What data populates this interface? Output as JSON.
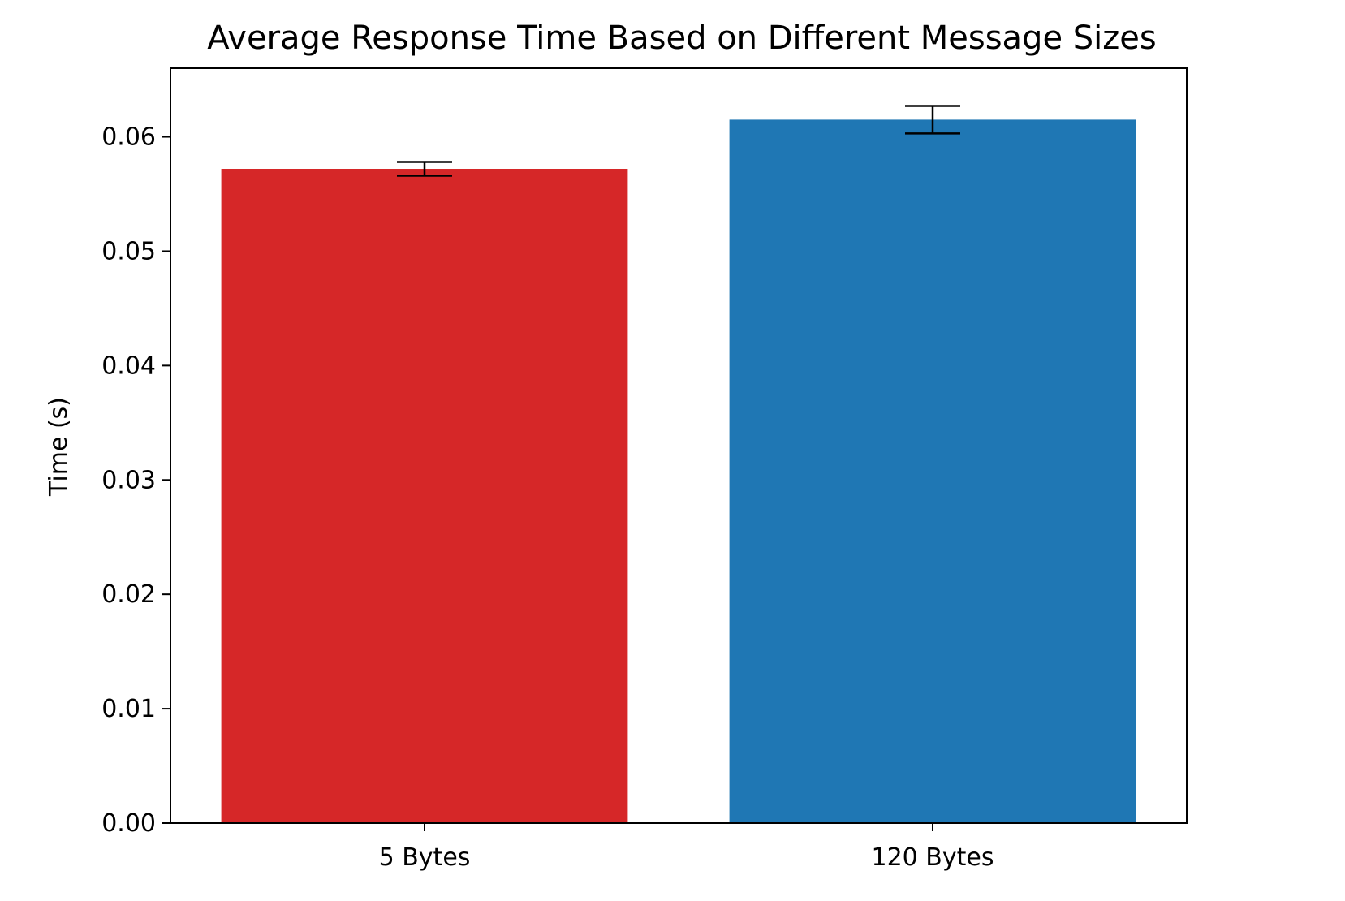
{
  "chart_data": {
    "type": "bar",
    "title": "Average Response Time Based on Different Message Sizes",
    "xlabel": "",
    "ylabel": "Time (s)",
    "categories": [
      "5 Bytes",
      "120 Bytes"
    ],
    "values": [
      0.0572,
      0.0615
    ],
    "error": [
      0.0006,
      0.0012
    ],
    "colors": [
      "#d62728",
      "#1f77b4"
    ],
    "ylim": [
      0,
      0.066
    ],
    "yticks": [
      0.0,
      0.01,
      0.02,
      0.03,
      0.04,
      0.05,
      0.06
    ],
    "ytick_labels": [
      "0.00",
      "0.01",
      "0.02",
      "0.03",
      "0.04",
      "0.05",
      "0.06"
    ],
    "grid": false,
    "legend": "none"
  }
}
